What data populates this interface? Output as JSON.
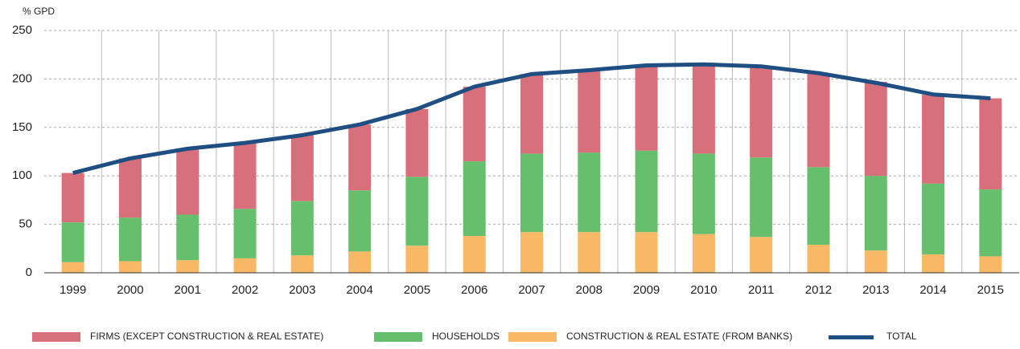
{
  "chart_data": {
    "type": "bar",
    "stacked": true,
    "y_label": "% GPD",
    "categories": [
      "1999",
      "2000",
      "2001",
      "2002",
      "2003",
      "2004",
      "2005",
      "2006",
      "2007",
      "2008",
      "2009",
      "2010",
      "2011",
      "2012",
      "2013",
      "2014",
      "2015"
    ],
    "series": [
      {
        "name": "FIRMS (EXCEPT CONSTRUCTION & REAL ESTATE)",
        "color": "#d7707b",
        "type": "bar",
        "values": [
          51,
          61,
          67,
          68,
          68,
          68,
          70,
          77,
          82,
          85,
          87,
          92,
          94,
          97,
          97,
          92,
          94
        ]
      },
      {
        "name": "HOUSEHOLDS",
        "color": "#66bf6c",
        "type": "bar",
        "values": [
          41,
          45,
          47,
          51,
          56,
          63,
          71,
          77,
          81,
          82,
          84,
          83,
          82,
          80,
          77,
          73,
          69
        ]
      },
      {
        "name": "CONSTRUCTION & REAL ESTATE (FROM BANKS)",
        "color": "#f9b866",
        "type": "bar",
        "values": [
          11,
          12,
          13,
          15,
          18,
          22,
          28,
          38,
          42,
          42,
          42,
          40,
          37,
          29,
          23,
          19,
          17
        ]
      },
      {
        "name": "TOTAL",
        "color": "#1f4e82",
        "type": "line",
        "values": [
          103,
          118,
          128,
          134,
          142,
          153,
          169,
          192,
          205,
          209,
          214,
          215,
          213,
          206,
          196,
          184,
          180
        ]
      }
    ],
    "ylim": [
      0,
      250
    ],
    "yticks": [
      0,
      50,
      100,
      150,
      200,
      250
    ],
    "grid": true
  }
}
